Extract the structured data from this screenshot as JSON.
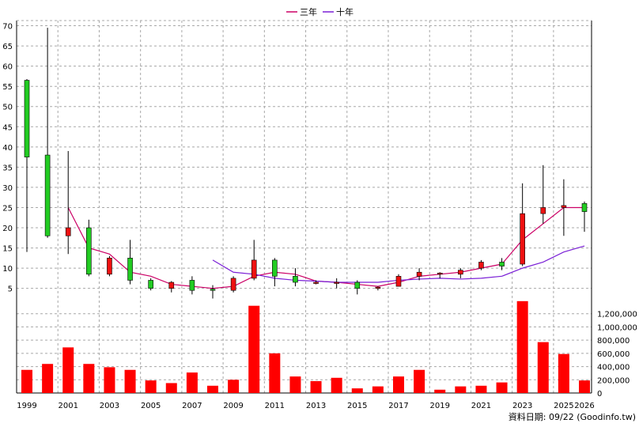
{
  "legend": [
    {
      "label": "三年",
      "color": "#cc0066"
    },
    {
      "label": "十年",
      "color": "#7a1fd6"
    }
  ],
  "footer": "資料日期: 09/22 (Goodinfo.tw)",
  "colors": {
    "up": "#ee1111",
    "down": "#22cc22",
    "volume": "#ff0000",
    "wick": "#000000"
  },
  "chart_data": [
    {
      "type": "candlestick",
      "ylim": [
        2,
        70.5
      ],
      "yticks": [
        5,
        10,
        15,
        20,
        25,
        30,
        35,
        40,
        45,
        50,
        55,
        60,
        65,
        70
      ],
      "grid": true,
      "legend_position": "top-center",
      "candles": [
        {
          "year": 1999,
          "open": 56.5,
          "high": 56.8,
          "low": 14.0,
          "close": 37.5
        },
        {
          "year": 2000,
          "open": 38.0,
          "high": 69.5,
          "low": 17.5,
          "close": 18.0
        },
        {
          "year": 2001,
          "open": 18.0,
          "high": 39.0,
          "low": 13.5,
          "close": 20.0
        },
        {
          "year": 2002,
          "open": 20.0,
          "high": 22.0,
          "low": 8.0,
          "close": 8.5
        },
        {
          "year": 2003,
          "open": 8.5,
          "high": 13.0,
          "low": 8.0,
          "close": 12.5
        },
        {
          "year": 2004,
          "open": 12.5,
          "high": 17.0,
          "low": 6.0,
          "close": 7.0
        },
        {
          "year": 2005,
          "open": 7.0,
          "high": 7.5,
          "low": 4.5,
          "close": 5.0
        },
        {
          "year": 2006,
          "open": 5.0,
          "high": 6.8,
          "low": 4.0,
          "close": 6.5
        },
        {
          "year": 2007,
          "open": 7.0,
          "high": 8.0,
          "low": 3.5,
          "close": 4.5
        },
        {
          "year": 2008,
          "open": 4.8,
          "high": 5.8,
          "low": 2.5,
          "close": 4.5
        },
        {
          "year": 2009,
          "open": 4.5,
          "high": 8.0,
          "low": 4.0,
          "close": 7.5
        },
        {
          "year": 2010,
          "open": 7.5,
          "high": 17.0,
          "low": 7.0,
          "close": 12.0
        },
        {
          "year": 2011,
          "open": 12.0,
          "high": 12.5,
          "low": 5.5,
          "close": 8.0
        },
        {
          "year": 2012,
          "open": 8.0,
          "high": 10.0,
          "low": 5.5,
          "close": 6.5
        },
        {
          "year": 2013,
          "open": 6.5,
          "high": 7.0,
          "low": 6.0,
          "close": 6.5
        },
        {
          "year": 2014,
          "open": 6.3,
          "high": 7.5,
          "low": 5.0,
          "close": 6.5
        },
        {
          "year": 2015,
          "open": 6.5,
          "high": 7.0,
          "low": 3.5,
          "close": 5.0
        },
        {
          "year": 2016,
          "open": 5.0,
          "high": 5.5,
          "low": 4.5,
          "close": 5.3
        },
        {
          "year": 2017,
          "open": 5.5,
          "high": 8.5,
          "low": 5.5,
          "close": 8.0
        },
        {
          "year": 2018,
          "open": 8.0,
          "high": 10.0,
          "low": 7.0,
          "close": 9.0
        },
        {
          "year": 2019,
          "open": 8.5,
          "high": 9.0,
          "low": 7.5,
          "close": 8.8
        },
        {
          "year": 2020,
          "open": 8.5,
          "high": 10.0,
          "low": 7.5,
          "close": 9.5
        },
        {
          "year": 2021,
          "open": 10.0,
          "high": 12.0,
          "low": 9.5,
          "close": 11.5
        },
        {
          "year": 2022,
          "open": 11.5,
          "high": 12.5,
          "low": 9.5,
          "close": 10.5
        },
        {
          "year": 2023,
          "open": 11.0,
          "high": 31.0,
          "low": 10.5,
          "close": 23.5
        },
        {
          "year": 2024,
          "open": 23.5,
          "high": 35.5,
          "low": 21.0,
          "close": 25.0
        },
        {
          "year": 2025,
          "open": 25.0,
          "high": 32.0,
          "low": 18.0,
          "close": 25.5
        },
        {
          "year": 2026,
          "open": 26.0,
          "high": 26.5,
          "low": 19.0,
          "close": 24.0
        }
      ],
      "series": [
        {
          "name": "三年",
          "color": "#cc0066",
          "x": [
            2001,
            2002,
            2003,
            2004,
            2005,
            2006,
            2007,
            2008,
            2009,
            2010,
            2011,
            2012,
            2013,
            2014,
            2015,
            2016,
            2017,
            2018,
            2019,
            2020,
            2021,
            2022,
            2023,
            2024,
            2025,
            2026
          ],
          "y": [
            25.0,
            15.0,
            13.5,
            9.0,
            8.0,
            6.0,
            5.5,
            5.0,
            5.5,
            8.0,
            9.0,
            8.5,
            6.8,
            6.5,
            6.0,
            5.5,
            6.5,
            8.0,
            8.5,
            9.0,
            10.0,
            11.0,
            17.0,
            21.0,
            25.0,
            25.0
          ]
        },
        {
          "name": "十年",
          "color": "#7a1fd6",
          "x": [
            2008,
            2009,
            2010,
            2011,
            2012,
            2013,
            2014,
            2015,
            2016,
            2017,
            2018,
            2019,
            2020,
            2021,
            2022,
            2023,
            2024,
            2025,
            2026
          ],
          "y": [
            12.0,
            9.0,
            8.5,
            7.5,
            7.0,
            6.8,
            6.5,
            6.5,
            6.5,
            7.0,
            7.3,
            7.5,
            7.3,
            7.5,
            8.0,
            10.0,
            11.5,
            14.0,
            15.5
          ]
        }
      ]
    },
    {
      "type": "bar",
      "ylim": [
        0,
        1400000
      ],
      "yticks": [
        0,
        200000,
        400000,
        600000,
        800000,
        1000000,
        1200000
      ],
      "ytick_labels": [
        "0",
        "200,000",
        "400,000",
        "600,000",
        "800,000",
        "1,000,000",
        "1,200,000"
      ],
      "categories": [
        1999,
        2000,
        2001,
        2002,
        2003,
        2004,
        2005,
        2006,
        2007,
        2008,
        2009,
        2010,
        2011,
        2012,
        2013,
        2014,
        2015,
        2016,
        2017,
        2018,
        2019,
        2020,
        2021,
        2022,
        2023,
        2024,
        2025,
        2026
      ],
      "values": [
        350000,
        440000,
        690000,
        440000,
        390000,
        350000,
        190000,
        150000,
        310000,
        110000,
        200000,
        1320000,
        600000,
        250000,
        180000,
        230000,
        70000,
        100000,
        250000,
        350000,
        50000,
        100000,
        110000,
        160000,
        1390000,
        770000,
        590000,
        190000
      ],
      "xtick_labels": [
        "1999",
        "2001",
        "2003",
        "2005",
        "2007",
        "2009",
        "2011",
        "2013",
        "2015",
        "2017",
        "2019",
        "2021",
        "2023",
        "2025",
        "2026"
      ]
    }
  ]
}
